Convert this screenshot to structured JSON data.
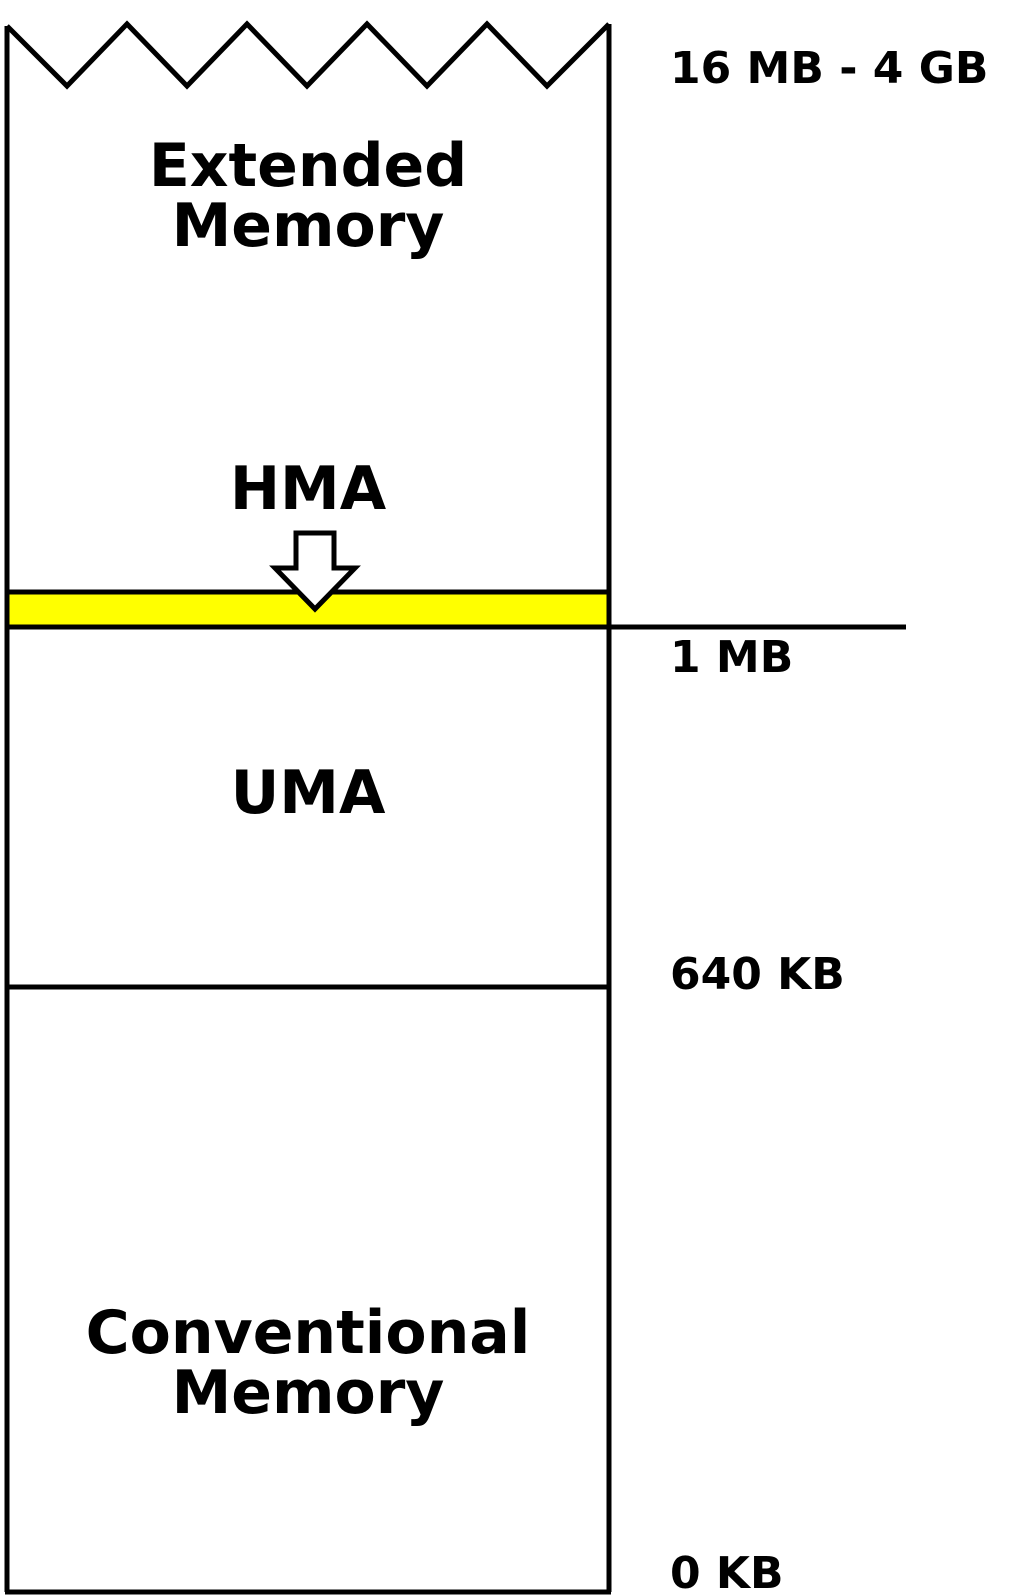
{
  "colors": {
    "hma_band": "#ffff00",
    "stroke": "#000000",
    "background": "#ffffff"
  },
  "regions": {
    "extended": {
      "line1": "Extended",
      "line2": "Memory"
    },
    "hma": {
      "label": "HMA"
    },
    "uma": {
      "label": "UMA"
    },
    "conventional": {
      "line1": "Conventional",
      "line2": "Memory"
    }
  },
  "addresses": {
    "top": "16 MB - 4 GB",
    "one_mb": "1 MB",
    "kb640": "640 KB",
    "zero": "0 KB"
  },
  "icons": {
    "zigzag": "zigzag-break-icon",
    "arrow": "down-arrow-icon"
  }
}
